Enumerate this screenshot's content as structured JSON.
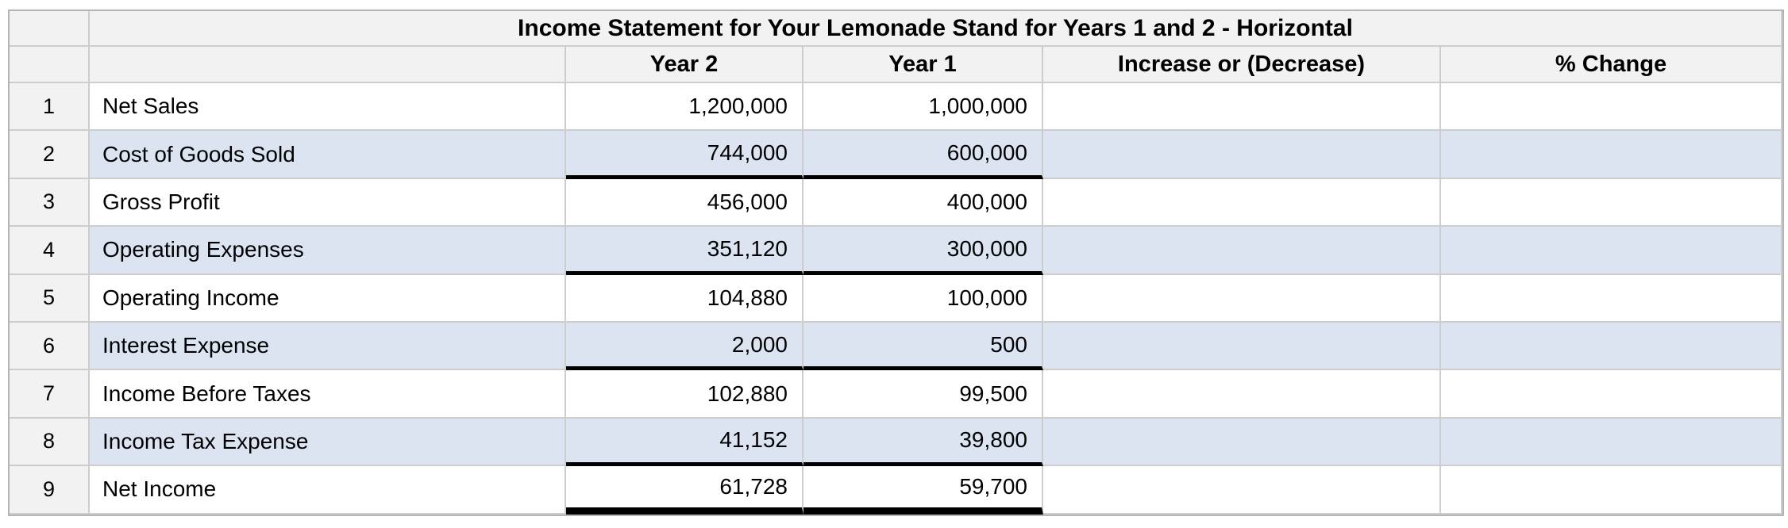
{
  "sheet": {
    "title": "Income Statement for Your Lemonade Stand for Years 1 and 2 - Horizontal",
    "header": {
      "year2": "Year 2",
      "year1": "Year 1",
      "increase": "Increase or (Decrease)",
      "pct_change": "% Change"
    },
    "rows": [
      {
        "num": "1",
        "label": "Net Sales",
        "year2": "1,200,000",
        "year1": "1,000,000",
        "increase": "",
        "pct_change": ""
      },
      {
        "num": "2",
        "label": "Cost of Goods Sold",
        "year2": "744,000",
        "year1": "600,000",
        "increase": "",
        "pct_change": ""
      },
      {
        "num": "3",
        "label": "Gross Profit",
        "year2": "456,000",
        "year1": "400,000",
        "increase": "",
        "pct_change": ""
      },
      {
        "num": "4",
        "label": "Operating Expenses",
        "year2": "351,120",
        "year1": "300,000",
        "increase": "",
        "pct_change": ""
      },
      {
        "num": "5",
        "label": "Operating Income",
        "year2": "104,880",
        "year1": "100,000",
        "increase": "",
        "pct_change": ""
      },
      {
        "num": "6",
        "label": "Interest Expense",
        "year2": "2,000",
        "year1": "500",
        "increase": "",
        "pct_change": ""
      },
      {
        "num": "7",
        "label": "Income Before Taxes",
        "year2": "102,880",
        "year1": "99,500",
        "increase": "",
        "pct_change": ""
      },
      {
        "num": "8",
        "label": "Income Tax Expense",
        "year2": "41,152",
        "year1": "39,800",
        "increase": "",
        "pct_change": ""
      },
      {
        "num": "9",
        "label": "Net Income",
        "year2": "61,728",
        "year1": "59,700",
        "increase": "",
        "pct_change": ""
      }
    ],
    "colors": {
      "header_bg": "#f2f2f2",
      "alt_row_bg": "#dce4f2",
      "gridline": "#cdcdcd",
      "thick_rule": "#000000",
      "text": "#000000"
    }
  }
}
